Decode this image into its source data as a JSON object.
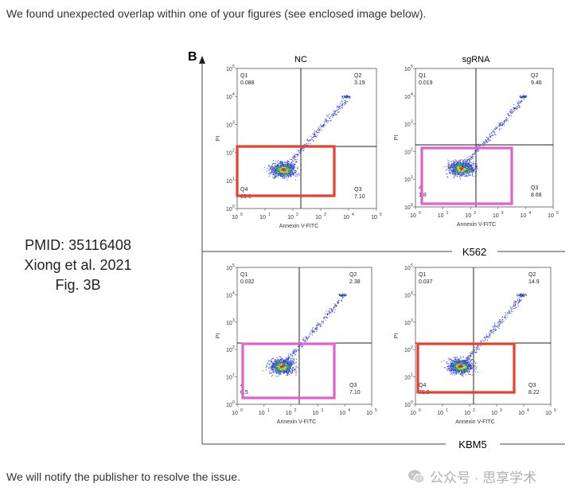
{
  "intro_text": "We found unexpected overlap within one of your figures (see enclosed image below).",
  "footer_text": "We will notify the publisher to resolve the issue.",
  "citation": {
    "line1": "PMID: 35116408",
    "line2": "Xiong et al. 2021",
    "line3": "Fig. 3B"
  },
  "figure": {
    "panel_label": "B",
    "column_labels": [
      "NC",
      "sgRNA"
    ],
    "row_labels": [
      "K562",
      "KBM5"
    ],
    "x_axis_label": "Annexin V-FITC",
    "y_axis_label": "PI",
    "tick_exponents": [
      "0",
      "1",
      "2",
      "3",
      "4",
      "5"
    ],
    "plots": [
      {
        "quadrants": {
          "Q1": "0.088",
          "Q2": "3.19",
          "Q3": "7.10",
          "Q4": "89.6"
        },
        "q4_value_shown": "89.6",
        "highlight_color": "#e8402f"
      },
      {
        "quadrants": {
          "Q1": "0.019",
          "Q2": "9.46",
          "Q3": "8.68",
          "Q4": "81.8"
        },
        "q4_value_shown": "1.8",
        "q4_label_shown": "4",
        "highlight_color": "#e35fd0"
      },
      {
        "quadrants": {
          "Q1": "0.032",
          "Q2": "2.38",
          "Q3": "7.10",
          "Q4": "90.5"
        },
        "q4_value_shown": "0.5",
        "q4_label_shown": "4",
        "highlight_color": "#e35fd0"
      },
      {
        "quadrants": {
          "Q1": "0.037",
          "Q2": "14.9",
          "Q3": "8.22",
          "Q4": "76.9"
        },
        "q4_value_shown": "76.9",
        "highlight_color": "#e8402f"
      }
    ]
  },
  "watermark": {
    "text": "公众号 · 思享学术",
    "icon": "wechat-icon"
  }
}
